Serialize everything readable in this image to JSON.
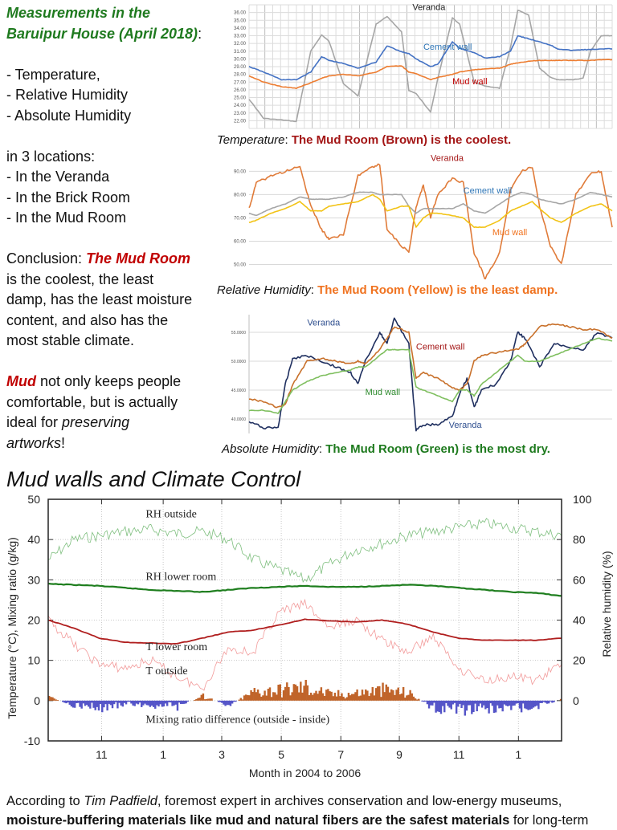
{
  "left_panel": {
    "title_line1": "Measurements in the",
    "title_line2": "Baruipur House (April 2018)",
    "title_colon": ":",
    "measures": [
      "- Temperature,",
      "- Relative Humidity",
      "- Absolute Humidity"
    ],
    "locations_intro": "in 3 locations:",
    "locations": [
      "- In the Veranda",
      "- In the Brick Room",
      "- In the Mud Room"
    ],
    "conclusion_prefix": "Conclusion: ",
    "conclusion_emph": "The Mud Room",
    "conclusion_lines": [
      "is the coolest, the least",
      "damp, has the least moisture",
      "content, and also has the",
      "most stable climate."
    ],
    "mud_emph": "Mud",
    "mud_line1_rest": " not only keeps people",
    "mud_line2": "comfortable, but is actually",
    "mud_line3_prefix": "ideal for ",
    "mud_line3_emph": "preserving",
    "mud_line4_emph": "artworks",
    "mud_line4_rest": "!"
  },
  "captions": {
    "temperature": {
      "label": "Temperature",
      "sep": ": ",
      "text": "The Mud Room (Brown) is the coolest."
    },
    "relative_humidity": {
      "label": "Relative Humidity",
      "sep": ": ",
      "text": "The Mud Room (Yellow) is the least damp."
    },
    "absolute_humidity": {
      "label": "Absolute Humidity",
      "sep": ": ",
      "text": "The Mud Room (Green) is the most dry."
    }
  },
  "section_title": "Mud walls and Climate Control",
  "footer": {
    "line1_prefix": "According to ",
    "line1_emph": "Tim Padfield",
    "line1_rest": ", foremost expert in archives conservation and low-energy museums,",
    "line2_bold": "moisture-buffering materials like mud and natural fibers are the safest materials",
    "line2_rest": " for long-term"
  },
  "colors": {
    "green_title": "#1f7a1f",
    "red_emphasis": "#c00000",
    "veranda_gray": "#a6a6a6",
    "cement_blue": "#4472c4",
    "mud_orange": "#ed7d31",
    "rh_veranda_orange": "#e07b39",
    "rh_mud_yellow": "#f2c316",
    "ah_veranda_navy": "#1f2f5f",
    "ah_cement_brown": "#c8702a",
    "ah_mud_green": "#7fbf5f"
  },
  "chart_data": [
    {
      "type": "line",
      "title": "Temperature",
      "ylabel": "",
      "ylim": [
        21,
        37
      ],
      "yticks": [
        "22.00",
        "23.00",
        "24.00",
        "25.00",
        "26.00",
        "27.00",
        "28.00",
        "29.00",
        "30.00",
        "31.00",
        "32.00",
        "33.00",
        "34.00",
        "35.00",
        "36.00"
      ],
      "grid": true,
      "labels": [
        {
          "text": "Veranda",
          "color": "#222222",
          "x": 0.45,
          "y": 36.3
        },
        {
          "text": "Cement wall",
          "color": "#2e75b6",
          "x": 0.48,
          "y": 31.2
        },
        {
          "text": "Mud wall",
          "color": "#c00000",
          "x": 0.56,
          "y": 26.7
        }
      ],
      "x": [
        0,
        0.04,
        0.09,
        0.13,
        0.17,
        0.2,
        0.22,
        0.26,
        0.3,
        0.35,
        0.38,
        0.42,
        0.44,
        0.46,
        0.5,
        0.52,
        0.56,
        0.58,
        0.62,
        0.65,
        0.69,
        0.72,
        0.74,
        0.77,
        0.8,
        0.83,
        0.85,
        0.89,
        0.92,
        0.94,
        0.97,
        1.0
      ],
      "series": [
        {
          "name": "Veranda",
          "color": "#a6a6a6",
          "values": [
            24.8,
            22.3,
            22.1,
            21.9,
            31.0,
            33.1,
            32.3,
            26.8,
            25.2,
            34.5,
            35.5,
            33.5,
            25.9,
            25.5,
            23.1,
            27.5,
            35.3,
            34.5,
            27.0,
            26.5,
            26.2,
            31.5,
            36.3,
            35.7,
            28.8,
            27.6,
            27.3,
            27.3,
            27.5,
            31.0,
            33.0,
            33.0
          ]
        },
        {
          "name": "Cement wall",
          "color": "#4472c4",
          "values": [
            29.0,
            28.3,
            27.3,
            27.3,
            28.3,
            30.3,
            29.8,
            29.4,
            28.8,
            29.6,
            31.7,
            30.9,
            30.7,
            30.0,
            29.0,
            29.3,
            32.2,
            31.4,
            30.8,
            30.1,
            30.3,
            31.0,
            33.0,
            32.6,
            32.2,
            31.8,
            31.3,
            31.1,
            31.2,
            31.2,
            31.3,
            31.3
          ]
        },
        {
          "name": "Mud wall",
          "color": "#ed7d31",
          "values": [
            27.8,
            27.0,
            26.4,
            26.2,
            26.9,
            27.5,
            27.8,
            28.0,
            27.8,
            28.3,
            29.0,
            29.1,
            28.3,
            28.1,
            27.3,
            27.6,
            28.0,
            28.3,
            28.6,
            28.7,
            28.8,
            29.3,
            29.5,
            29.7,
            29.8,
            29.8,
            29.8,
            29.8,
            29.8,
            29.8,
            29.9,
            29.9
          ]
        }
      ]
    },
    {
      "type": "line",
      "title": "Relative Humidity",
      "ylim": [
        45,
        96
      ],
      "yticks": [
        "50.00",
        "60.00",
        "70.00",
        "80.00",
        "90.00"
      ],
      "grid": true,
      "labels": [
        {
          "text": "Veranda",
          "color": "#a31515",
          "x": 0.5,
          "y": 94.5
        },
        {
          "text": "Cement wall",
          "color": "#2e75b6",
          "x": 0.59,
          "y": 80.5
        },
        {
          "text": "Mud wall",
          "color": "#f07320",
          "x": 0.67,
          "y": 62.5
        }
      ],
      "x": [
        0,
        0.02,
        0.06,
        0.1,
        0.14,
        0.17,
        0.2,
        0.22,
        0.26,
        0.3,
        0.34,
        0.36,
        0.38,
        0.42,
        0.44,
        0.46,
        0.48,
        0.5,
        0.52,
        0.56,
        0.59,
        0.62,
        0.65,
        0.69,
        0.72,
        0.75,
        0.78,
        0.8,
        0.83,
        0.86,
        0.9,
        0.94,
        0.97,
        1.0
      ],
      "series": [
        {
          "name": "Veranda",
          "color": "#e07b39",
          "values": [
            74,
            85,
            88,
            90,
            92,
            75,
            65,
            61,
            63,
            88,
            92,
            93,
            65,
            58,
            55,
            75,
            84,
            70,
            80,
            87,
            85,
            55,
            44,
            55,
            82,
            90,
            92,
            75,
            58,
            50,
            80,
            89,
            90,
            66
          ]
        },
        {
          "name": "Cement wall",
          "color": "#a6a6a6",
          "values": [
            72,
            71,
            74,
            76,
            79,
            78,
            78,
            78,
            79,
            81,
            81,
            80,
            80,
            80,
            75,
            72,
            74,
            74,
            74,
            74,
            76,
            73,
            72,
            76,
            79,
            81,
            80,
            78,
            77,
            76,
            78,
            81,
            80,
            79
          ]
        },
        {
          "name": "Mud wall",
          "color": "#f2c316",
          "values": [
            68,
            69,
            72,
            74,
            77,
            73,
            73,
            75,
            76,
            77,
            80,
            78,
            73,
            75,
            75,
            66,
            70,
            72,
            72,
            71,
            70,
            66,
            66,
            69,
            73,
            75,
            77,
            74,
            70,
            68,
            72,
            75,
            76,
            73
          ]
        }
      ]
    },
    {
      "type": "line",
      "title": "Absolute Humidity",
      "ylim": [
        37.5,
        57.5
      ],
      "yticks": [
        "40.0000",
        "45.0000",
        "50.0000",
        "55.0000"
      ],
      "grid": true,
      "labels": [
        {
          "text": "Veranda",
          "color": "#2f4f8f",
          "x": 0.16,
          "y": 56.2
        },
        {
          "text": "Cement wall",
          "color": "#a31515",
          "x": 0.46,
          "y": 52.0
        },
        {
          "text": "Mud wall",
          "color": "#2e8b2e",
          "x": 0.32,
          "y": 44.2
        },
        {
          "text": "Veranda",
          "color": "#2f4f8f",
          "x": 0.55,
          "y": 38.5
        }
      ],
      "x": [
        0,
        0.04,
        0.08,
        0.1,
        0.12,
        0.16,
        0.2,
        0.24,
        0.28,
        0.3,
        0.32,
        0.36,
        0.38,
        0.4,
        0.44,
        0.46,
        0.48,
        0.52,
        0.56,
        0.58,
        0.6,
        0.62,
        0.64,
        0.68,
        0.72,
        0.74,
        0.76,
        0.8,
        0.84,
        0.88,
        0.92,
        0.96,
        1.0
      ],
      "series": [
        {
          "name": "Veranda (navy)",
          "color": "#1f2f5f",
          "values": [
            39.5,
            38.5,
            38.5,
            46,
            50.5,
            51,
            50,
            49,
            48,
            46,
            50,
            55,
            53,
            57.5,
            53,
            38,
            39,
            39,
            40.5,
            44.5,
            47,
            42,
            45,
            46,
            50,
            55,
            54,
            49,
            53,
            52.5,
            52,
            55,
            54
          ]
        },
        {
          "name": "Cement wall (brown)",
          "color": "#c8702a",
          "values": [
            43.5,
            43,
            42,
            42.5,
            46,
            50,
            50.5,
            50,
            49.5,
            50,
            49.5,
            52,
            54,
            56,
            55,
            47,
            48,
            47,
            45.5,
            45,
            46,
            50,
            51,
            51.5,
            52,
            52,
            53,
            56,
            56.5,
            56,
            55.5,
            55.5,
            54
          ]
        },
        {
          "name": "Mud wall (green)",
          "color": "#7fbf5f",
          "values": [
            41.5,
            41.5,
            41,
            43,
            45,
            46.5,
            47.5,
            48,
            48.5,
            49,
            49,
            51,
            52,
            52,
            52,
            45.5,
            45,
            44,
            43,
            45,
            45,
            44,
            46,
            48,
            50,
            51,
            50,
            50,
            51,
            52,
            53,
            54,
            53.5
          ]
        }
      ]
    },
    {
      "type": "line",
      "title": "Mud walls and Climate Control",
      "xlabel": "Month in 2004 to 2006",
      "ylabel": "Temperature (°C), Mixing ratio (g/kg)",
      "ylabel_right": "Relative humidity (%)",
      "ylim": [
        -10,
        50
      ],
      "ylim_right": [
        -20,
        100
      ],
      "yticks": [
        "-10",
        "0",
        "10",
        "20",
        "30",
        "40",
        "50"
      ],
      "yticks_right": [
        "0",
        "20",
        "40",
        "60",
        "80",
        "100"
      ],
      "xticks": [
        "11",
        "1",
        "3",
        "5",
        "7",
        "9",
        "11",
        "1"
      ],
      "grid": "dotted",
      "labels": [
        {
          "text": "RH outside",
          "x": 0.19,
          "y": 45.5
        },
        {
          "text": "RH lower room",
          "x": 0.19,
          "y": 30.0
        },
        {
          "text": "T lower room",
          "x": 0.19,
          "y": 12.5
        },
        {
          "text": "T outside",
          "x": 0.19,
          "y": 6.5
        },
        {
          "text": "Mixing ratio difference (outside - inside)",
          "x": 0.19,
          "y": -5.5
        }
      ],
      "x": [
        0,
        0.05,
        0.1,
        0.15,
        0.2,
        0.25,
        0.3,
        0.35,
        0.4,
        0.45,
        0.5,
        0.55,
        0.6,
        0.65,
        0.7,
        0.75,
        0.8,
        0.85,
        0.9,
        0.95,
        1.0
      ],
      "series": [
        {
          "name": "RH outside",
          "color": "#7fbf7f",
          "axis": "right",
          "values": [
            70,
            80,
            82,
            84,
            85,
            83,
            84,
            80,
            70,
            65,
            60,
            68,
            75,
            78,
            82,
            84,
            86,
            88,
            86,
            84,
            82
          ]
        },
        {
          "name": "RH lower room",
          "color": "#1e7e1e",
          "axis": "right",
          "values": [
            58,
            57.5,
            57,
            56,
            55,
            54.5,
            54,
            55,
            56,
            56.5,
            57,
            56.5,
            56.5,
            57,
            57.5,
            57,
            56,
            55,
            54,
            53.5,
            52
          ]
        },
        {
          "name": "T lower room",
          "color": "#b01e1e",
          "axis": "left",
          "values": [
            20,
            18,
            15.5,
            14.5,
            14.3,
            14.1,
            15.5,
            17,
            17.5,
            18.8,
            20.2,
            19.8,
            19.5,
            20,
            19,
            17,
            15.5,
            15,
            15,
            15,
            15.5
          ]
        },
        {
          "name": "T outside",
          "color": "#f29a9a",
          "axis": "left",
          "values": [
            20,
            14,
            9,
            8,
            10,
            6,
            3,
            13,
            12,
            22,
            24,
            18,
            20,
            15,
            12,
            16,
            8,
            5,
            6,
            5,
            9
          ]
        },
        {
          "name": "Mixing ratio difference (outside - inside)",
          "color": "#c0642a",
          "color_negative": "#5555c8",
          "type": "bar",
          "axis": "left",
          "values": [
            1,
            -1.5,
            -2.5,
            -1,
            -1.5,
            -2,
            1.5,
            -1.5,
            3,
            3.5,
            4.5,
            2,
            2.5,
            3.5,
            2.5,
            -2.5,
            -3,
            -2.5,
            -2.5,
            -2,
            0.5
          ]
        }
      ]
    }
  ]
}
